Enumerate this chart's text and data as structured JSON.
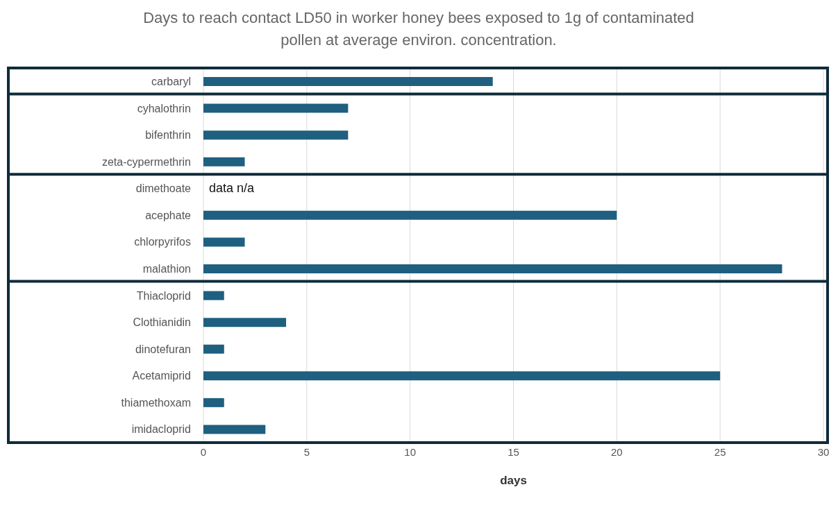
{
  "chart_data": {
    "type": "bar",
    "orientation": "horizontal",
    "title": "Days to reach contact LD50 in worker honey bees exposed to 1g of contaminated pollen at average environ. concentration.",
    "xlabel": "days",
    "categories": [
      "carbaryl",
      "cyhalothrin",
      "bifenthrin",
      "zeta-cypermethrin",
      "dimethoate",
      "acephate",
      "chlorpyrifos",
      "malathion",
      "Thiacloprid",
      "Clothianidin",
      "dinotefuran",
      "Acetamiprid",
      "thiamethoxam",
      "imidacloprid"
    ],
    "values": [
      14,
      7,
      7,
      2,
      null,
      20,
      2,
      28,
      1,
      4,
      1,
      25,
      1,
      3
    ],
    "color": "#1f5f80",
    "xlim": [
      0,
      30
    ],
    "xticks": [
      0,
      5,
      10,
      15,
      20,
      25,
      30
    ],
    "grid": "x",
    "annotations": [
      "data n/a"
    ]
  }
}
